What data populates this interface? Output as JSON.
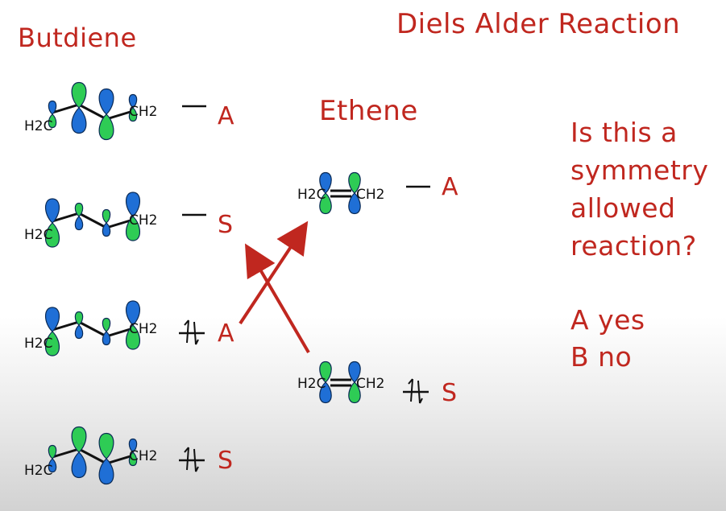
{
  "title": "Diels Alder Reaction",
  "butadiene": {
    "heading": "Butdiene",
    "orbitals": [
      {
        "symmetry": "A",
        "electrons": "",
        "left_group": "H2C",
        "right_group": "CH2"
      },
      {
        "symmetry": "S",
        "electrons": "",
        "left_group": "H2C",
        "right_group": "CH2"
      },
      {
        "symmetry": "A",
        "electrons": "↑↓",
        "left_group": "H2C",
        "right_group": "CH2"
      },
      {
        "symmetry": "S",
        "electrons": "↑↓",
        "left_group": "H2C",
        "right_group": "CH2"
      }
    ]
  },
  "ethene": {
    "heading": "Ethene",
    "orbitals": [
      {
        "symmetry": "A",
        "electrons": "",
        "left_group": "H2C",
        "right_group": "CH2"
      },
      {
        "symmetry": "S",
        "electrons": "↑↓",
        "left_group": "H2C",
        "right_group": "CH2"
      }
    ]
  },
  "question": {
    "lines": [
      "Is this a",
      "symmetry",
      "allowed",
      "reaction?"
    ],
    "options": [
      "A yes",
      "B no"
    ]
  },
  "colors": {
    "text": "#c0271f",
    "lobe_blue": "#1f6fd6",
    "lobe_green": "#2ecc55",
    "bond": "#111111"
  }
}
